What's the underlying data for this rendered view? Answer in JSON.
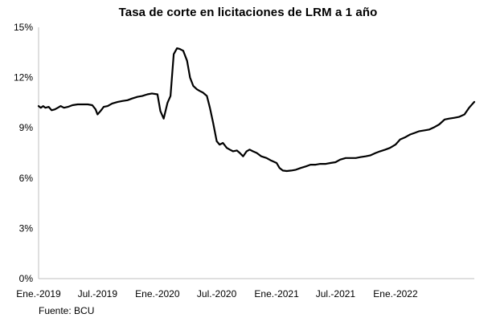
{
  "chart_data": {
    "type": "line",
    "title": "Tasa de corte en licitaciones de LRM a 1 año",
    "xlabel": "",
    "ylabel": "",
    "source": "Fuente: BCU",
    "ylim": [
      0,
      15
    ],
    "y_ticks": [
      "0%",
      "3%",
      "6%",
      "9%",
      "12%",
      "15%"
    ],
    "y_tick_values": [
      0,
      3,
      6,
      9,
      12,
      15
    ],
    "x_range": [
      "2019-01-01",
      "2022-08-31"
    ],
    "x_ticks": [
      "Ene.-2019",
      "Jul.-2019",
      "Ene.-2020",
      "Jul.-2020",
      "Ene.-2021",
      "Jul.-2021",
      "Ene.-2022"
    ],
    "x_tick_dates": [
      "2019-01-01",
      "2019-07-01",
      "2020-01-01",
      "2020-07-01",
      "2021-01-01",
      "2021-07-01",
      "2022-01-01"
    ],
    "grid": false,
    "line_color": "#000000",
    "series": [
      {
        "x": [
          "2019-01-01",
          "2019-01-08",
          "2019-01-15",
          "2019-01-22",
          "2019-02-01",
          "2019-02-10",
          "2019-02-20",
          "2019-03-01",
          "2019-03-10",
          "2019-03-20",
          "2019-04-01",
          "2019-04-15",
          "2019-05-01",
          "2019-05-15",
          "2019-06-01",
          "2019-06-15",
          "2019-06-25",
          "2019-07-01",
          "2019-07-10",
          "2019-07-20",
          "2019-08-01",
          "2019-08-15",
          "2019-09-01",
          "2019-09-15",
          "2019-10-01",
          "2019-10-15",
          "2019-11-01",
          "2019-11-15",
          "2019-12-01",
          "2019-12-15",
          "2020-01-01",
          "2020-01-10",
          "2020-01-20",
          "2020-02-01",
          "2020-02-10",
          "2020-02-20",
          "2020-03-01",
          "2020-03-10",
          "2020-03-20",
          "2020-04-01",
          "2020-04-10",
          "2020-04-20",
          "2020-05-01",
          "2020-05-10",
          "2020-05-20",
          "2020-06-01",
          "2020-06-10",
          "2020-06-20",
          "2020-07-01",
          "2020-07-10",
          "2020-07-20",
          "2020-08-01",
          "2020-08-10",
          "2020-08-20",
          "2020-09-01",
          "2020-09-10",
          "2020-09-20",
          "2020-10-01",
          "2020-10-10",
          "2020-10-20",
          "2020-11-01",
          "2020-11-15",
          "2020-12-01",
          "2020-12-15",
          "2021-01-01",
          "2021-01-10",
          "2021-01-20",
          "2021-02-01",
          "2021-02-15",
          "2021-03-01",
          "2021-03-15",
          "2021-04-01",
          "2021-04-15",
          "2021-05-01",
          "2021-05-15",
          "2021-06-01",
          "2021-06-15",
          "2021-07-01",
          "2021-07-15",
          "2021-08-01",
          "2021-08-15",
          "2021-09-01",
          "2021-09-15",
          "2021-10-01",
          "2021-10-15",
          "2021-11-01",
          "2021-11-15",
          "2021-12-01",
          "2021-12-15",
          "2022-01-01",
          "2022-01-15",
          "2022-02-01",
          "2022-02-15",
          "2022-03-01",
          "2022-03-15",
          "2022-04-01",
          "2022-04-15",
          "2022-05-01",
          "2022-05-15",
          "2022-06-01",
          "2022-06-15",
          "2022-07-01",
          "2022-07-15",
          "2022-08-01",
          "2022-08-15",
          "2022-08-31"
        ],
        "y": [
          10.3,
          10.2,
          10.3,
          10.2,
          10.25,
          10.05,
          10.1,
          10.2,
          10.3,
          10.2,
          10.25,
          10.35,
          10.4,
          10.4,
          10.4,
          10.35,
          10.1,
          9.8,
          10.0,
          10.25,
          10.3,
          10.45,
          10.55,
          10.6,
          10.65,
          10.75,
          10.85,
          10.9,
          11.0,
          11.05,
          11.0,
          10.0,
          9.55,
          10.5,
          10.9,
          13.4,
          13.75,
          13.7,
          13.6,
          13.0,
          12.0,
          11.5,
          11.3,
          11.2,
          11.1,
          10.9,
          10.2,
          9.3,
          8.2,
          8.0,
          8.1,
          7.8,
          7.7,
          7.6,
          7.65,
          7.5,
          7.3,
          7.6,
          7.7,
          7.6,
          7.5,
          7.3,
          7.2,
          7.05,
          6.9,
          6.6,
          6.45,
          6.42,
          6.45,
          6.5,
          6.6,
          6.7,
          6.8,
          6.8,
          6.85,
          6.85,
          6.9,
          6.95,
          7.1,
          7.2,
          7.2,
          7.2,
          7.25,
          7.3,
          7.35,
          7.5,
          7.6,
          7.7,
          7.8,
          8.0,
          8.3,
          8.45,
          8.6,
          8.7,
          8.8,
          8.85,
          8.9,
          9.05,
          9.2,
          9.5,
          9.55,
          9.6,
          9.65,
          9.8,
          10.2,
          10.55
        ]
      }
    ]
  }
}
